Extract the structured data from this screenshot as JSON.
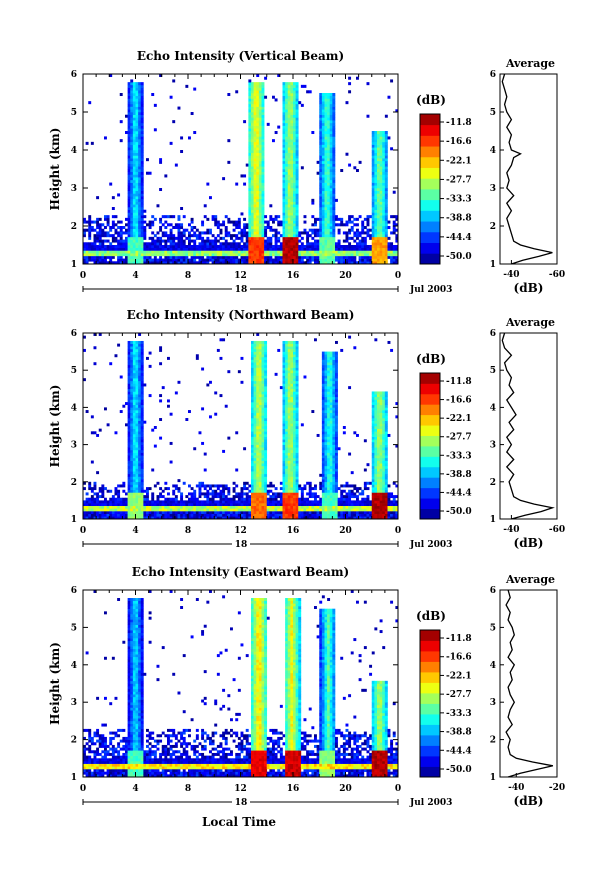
{
  "figure": {
    "xlabel": "Local Time",
    "date_label": "Jul 2003",
    "day_label": "18",
    "colorbar_unit": "(dB)",
    "avg_title": "Average",
    "avg_xlabel": "(dB)"
  },
  "chart_data": [
    {
      "type": "heatmap",
      "title": "Echo Intensity (Vertical Beam)",
      "xlabel": "Local Time",
      "ylabel": "Height (km)",
      "xlim": [
        0,
        24
      ],
      "ylim": [
        1,
        6
      ],
      "xticks": [
        "0",
        "4",
        "8",
        "12",
        "16",
        "20",
        "0"
      ],
      "xtick_values": [
        0,
        4,
        8,
        12,
        16,
        20,
        24
      ],
      "yticks": [
        "1",
        "2",
        "3",
        "4",
        "5",
        "6"
      ],
      "colorbar": {
        "label": "(dB)",
        "levels": [
          "-11.8",
          "-16.6",
          "-22.1",
          "-27.7",
          "-33.3",
          "-38.8",
          "-44.4",
          "-50.0"
        ],
        "range": [
          -50.0,
          -11.0
        ]
      },
      "features": {
        "base_layer": {
          "ymin": 1.25,
          "ymax": 1.5,
          "level": -30
        },
        "clutter_top_km": 2.3,
        "spikes": [
          {
            "x": 4.0,
            "top": 5.8,
            "core": -35,
            "peak": -33
          },
          {
            "x": 13.2,
            "top": 5.8,
            "core": -25,
            "peak": -18
          },
          {
            "x": 15.8,
            "top": 5.8,
            "core": -28,
            "peak": -13
          },
          {
            "x": 18.6,
            "top": 5.5,
            "core": -32,
            "peak": -32
          },
          {
            "x": 22.6,
            "top": 4.5,
            "core": -30,
            "peak": -22
          }
        ]
      },
      "average_profile": {
        "title": "Average",
        "xlabel": "(dB)",
        "xticks": [
          "-40",
          "-60"
        ],
        "xlim": [
          -35,
          -60
        ],
        "ylim": [
          1,
          6
        ],
        "heights": [
          1.0,
          1.1,
          1.2,
          1.3,
          1.4,
          1.5,
          1.6,
          1.8,
          2.0,
          2.2,
          2.4,
          2.6,
          2.8,
          3.0,
          3.2,
          3.4,
          3.6,
          3.8,
          3.9,
          4.0,
          4.2,
          4.4,
          4.6,
          4.8,
          5.0,
          5.2,
          5.4,
          5.6,
          5.8,
          6.0
        ],
        "values": [
          -40,
          -45,
          -52,
          -58,
          -50,
          -44,
          -41,
          -40,
          -39,
          -38,
          -40,
          -38,
          -41,
          -38,
          -39,
          -38,
          -40,
          -41,
          -44,
          -40,
          -39,
          -40,
          -38,
          -40,
          -38,
          -37,
          -38,
          -37,
          -36,
          -37
        ]
      }
    },
    {
      "type": "heatmap",
      "title": "Echo Intensity (Northward Beam)",
      "xlabel": "Local Time",
      "ylabel": "Height (km)",
      "xlim": [
        0,
        24
      ],
      "ylim": [
        1,
        6
      ],
      "xticks": [
        "0",
        "4",
        "8",
        "12",
        "16",
        "20",
        "0"
      ],
      "xtick_values": [
        0,
        4,
        8,
        12,
        16,
        20,
        24
      ],
      "yticks": [
        "1",
        "2",
        "3",
        "4",
        "5",
        "6"
      ],
      "colorbar": {
        "label": "(dB)",
        "levels": [
          "-11.8",
          "-16.6",
          "-22.1",
          "-27.7",
          "-33.3",
          "-38.8",
          "-44.4",
          "-50.0"
        ],
        "range": [
          -50.0,
          -11.0
        ]
      },
      "features": {
        "base_layer": {
          "ymin": 1.25,
          "ymax": 1.5,
          "level": -28
        },
        "clutter_top_km": 2.0,
        "spikes": [
          {
            "x": 4.0,
            "top": 5.8,
            "core": -35,
            "peak": -30
          },
          {
            "x": 13.4,
            "top": 5.8,
            "core": -27,
            "peak": -20
          },
          {
            "x": 15.8,
            "top": 5.8,
            "core": -28,
            "peak": -18
          },
          {
            "x": 18.8,
            "top": 5.5,
            "core": -33,
            "peak": -33
          },
          {
            "x": 22.6,
            "top": 4.4,
            "core": -28,
            "peak": -13
          }
        ]
      },
      "average_profile": {
        "title": "Average",
        "xlabel": "(dB)",
        "xticks": [
          "-40",
          "-60"
        ],
        "xlim": [
          -35,
          -60
        ],
        "ylim": [
          1,
          6
        ],
        "heights": [
          1.0,
          1.1,
          1.2,
          1.3,
          1.4,
          1.5,
          1.6,
          1.8,
          2.0,
          2.2,
          2.4,
          2.6,
          2.8,
          3.0,
          3.2,
          3.4,
          3.6,
          3.8,
          4.0,
          4.2,
          4.4,
          4.6,
          4.8,
          5.0,
          5.2,
          5.4,
          5.6,
          5.8,
          6.0
        ],
        "values": [
          -40,
          -46,
          -53,
          -58,
          -50,
          -44,
          -41,
          -40,
          -39,
          -41,
          -38,
          -41,
          -38,
          -40,
          -38,
          -41,
          -39,
          -42,
          -40,
          -38,
          -41,
          -39,
          -40,
          -38,
          -37,
          -40,
          -37,
          -36,
          -37
        ]
      }
    },
    {
      "type": "heatmap",
      "title": "Echo Intensity (Eastward Beam)",
      "xlabel": "Local Time",
      "ylabel": "Height (km)",
      "xlim": [
        0,
        24
      ],
      "ylim": [
        1,
        6
      ],
      "xticks": [
        "0",
        "4",
        "8",
        "12",
        "16",
        "20",
        "0"
      ],
      "xtick_values": [
        0,
        4,
        8,
        12,
        16,
        20,
        24
      ],
      "yticks": [
        "1",
        "2",
        "3",
        "4",
        "5",
        "6"
      ],
      "colorbar": {
        "label": "(dB)",
        "levels": [
          "-11.8",
          "-16.6",
          "-22.1",
          "-27.7",
          "-33.3",
          "-38.8",
          "-44.4",
          "-50.0"
        ],
        "range": [
          -50.0,
          -11.0
        ]
      },
      "features": {
        "base_layer": {
          "ymin": 1.25,
          "ymax": 1.5,
          "level": -25
        },
        "clutter_top_km": 2.3,
        "spikes": [
          {
            "x": 4.0,
            "top": 5.8,
            "core": -36,
            "peak": -33
          },
          {
            "x": 13.4,
            "top": 5.8,
            "core": -24,
            "peak": -15
          },
          {
            "x": 15.9,
            "top": 5.8,
            "core": -26,
            "peak": -14
          },
          {
            "x": 18.7,
            "top": 5.5,
            "core": -32,
            "peak": -30
          },
          {
            "x": 22.6,
            "top": 3.6,
            "core": -28,
            "peak": -13
          }
        ]
      },
      "average_profile": {
        "title": "Average",
        "xlabel": "(dB)",
        "xticks": [
          "-40",
          "-20"
        ],
        "xlim": [
          -48,
          -20
        ],
        "ylim": [
          1,
          6
        ],
        "heights": [
          1.0,
          1.1,
          1.2,
          1.3,
          1.4,
          1.5,
          1.6,
          1.8,
          2.0,
          2.2,
          2.4,
          2.6,
          2.8,
          3.0,
          3.2,
          3.4,
          3.6,
          3.8,
          4.0,
          4.2,
          4.4,
          4.6,
          4.8,
          5.0,
          5.2,
          5.4,
          5.6,
          5.8,
          6.0
        ],
        "values": [
          -44,
          -38,
          -30,
          -22,
          -32,
          -40,
          -43,
          -44,
          -43,
          -45,
          -42,
          -44,
          -43,
          -41,
          -43,
          -44,
          -42,
          -43,
          -41,
          -44,
          -42,
          -43,
          -41,
          -42,
          -44,
          -43,
          -45,
          -43,
          -44
        ]
      }
    }
  ]
}
